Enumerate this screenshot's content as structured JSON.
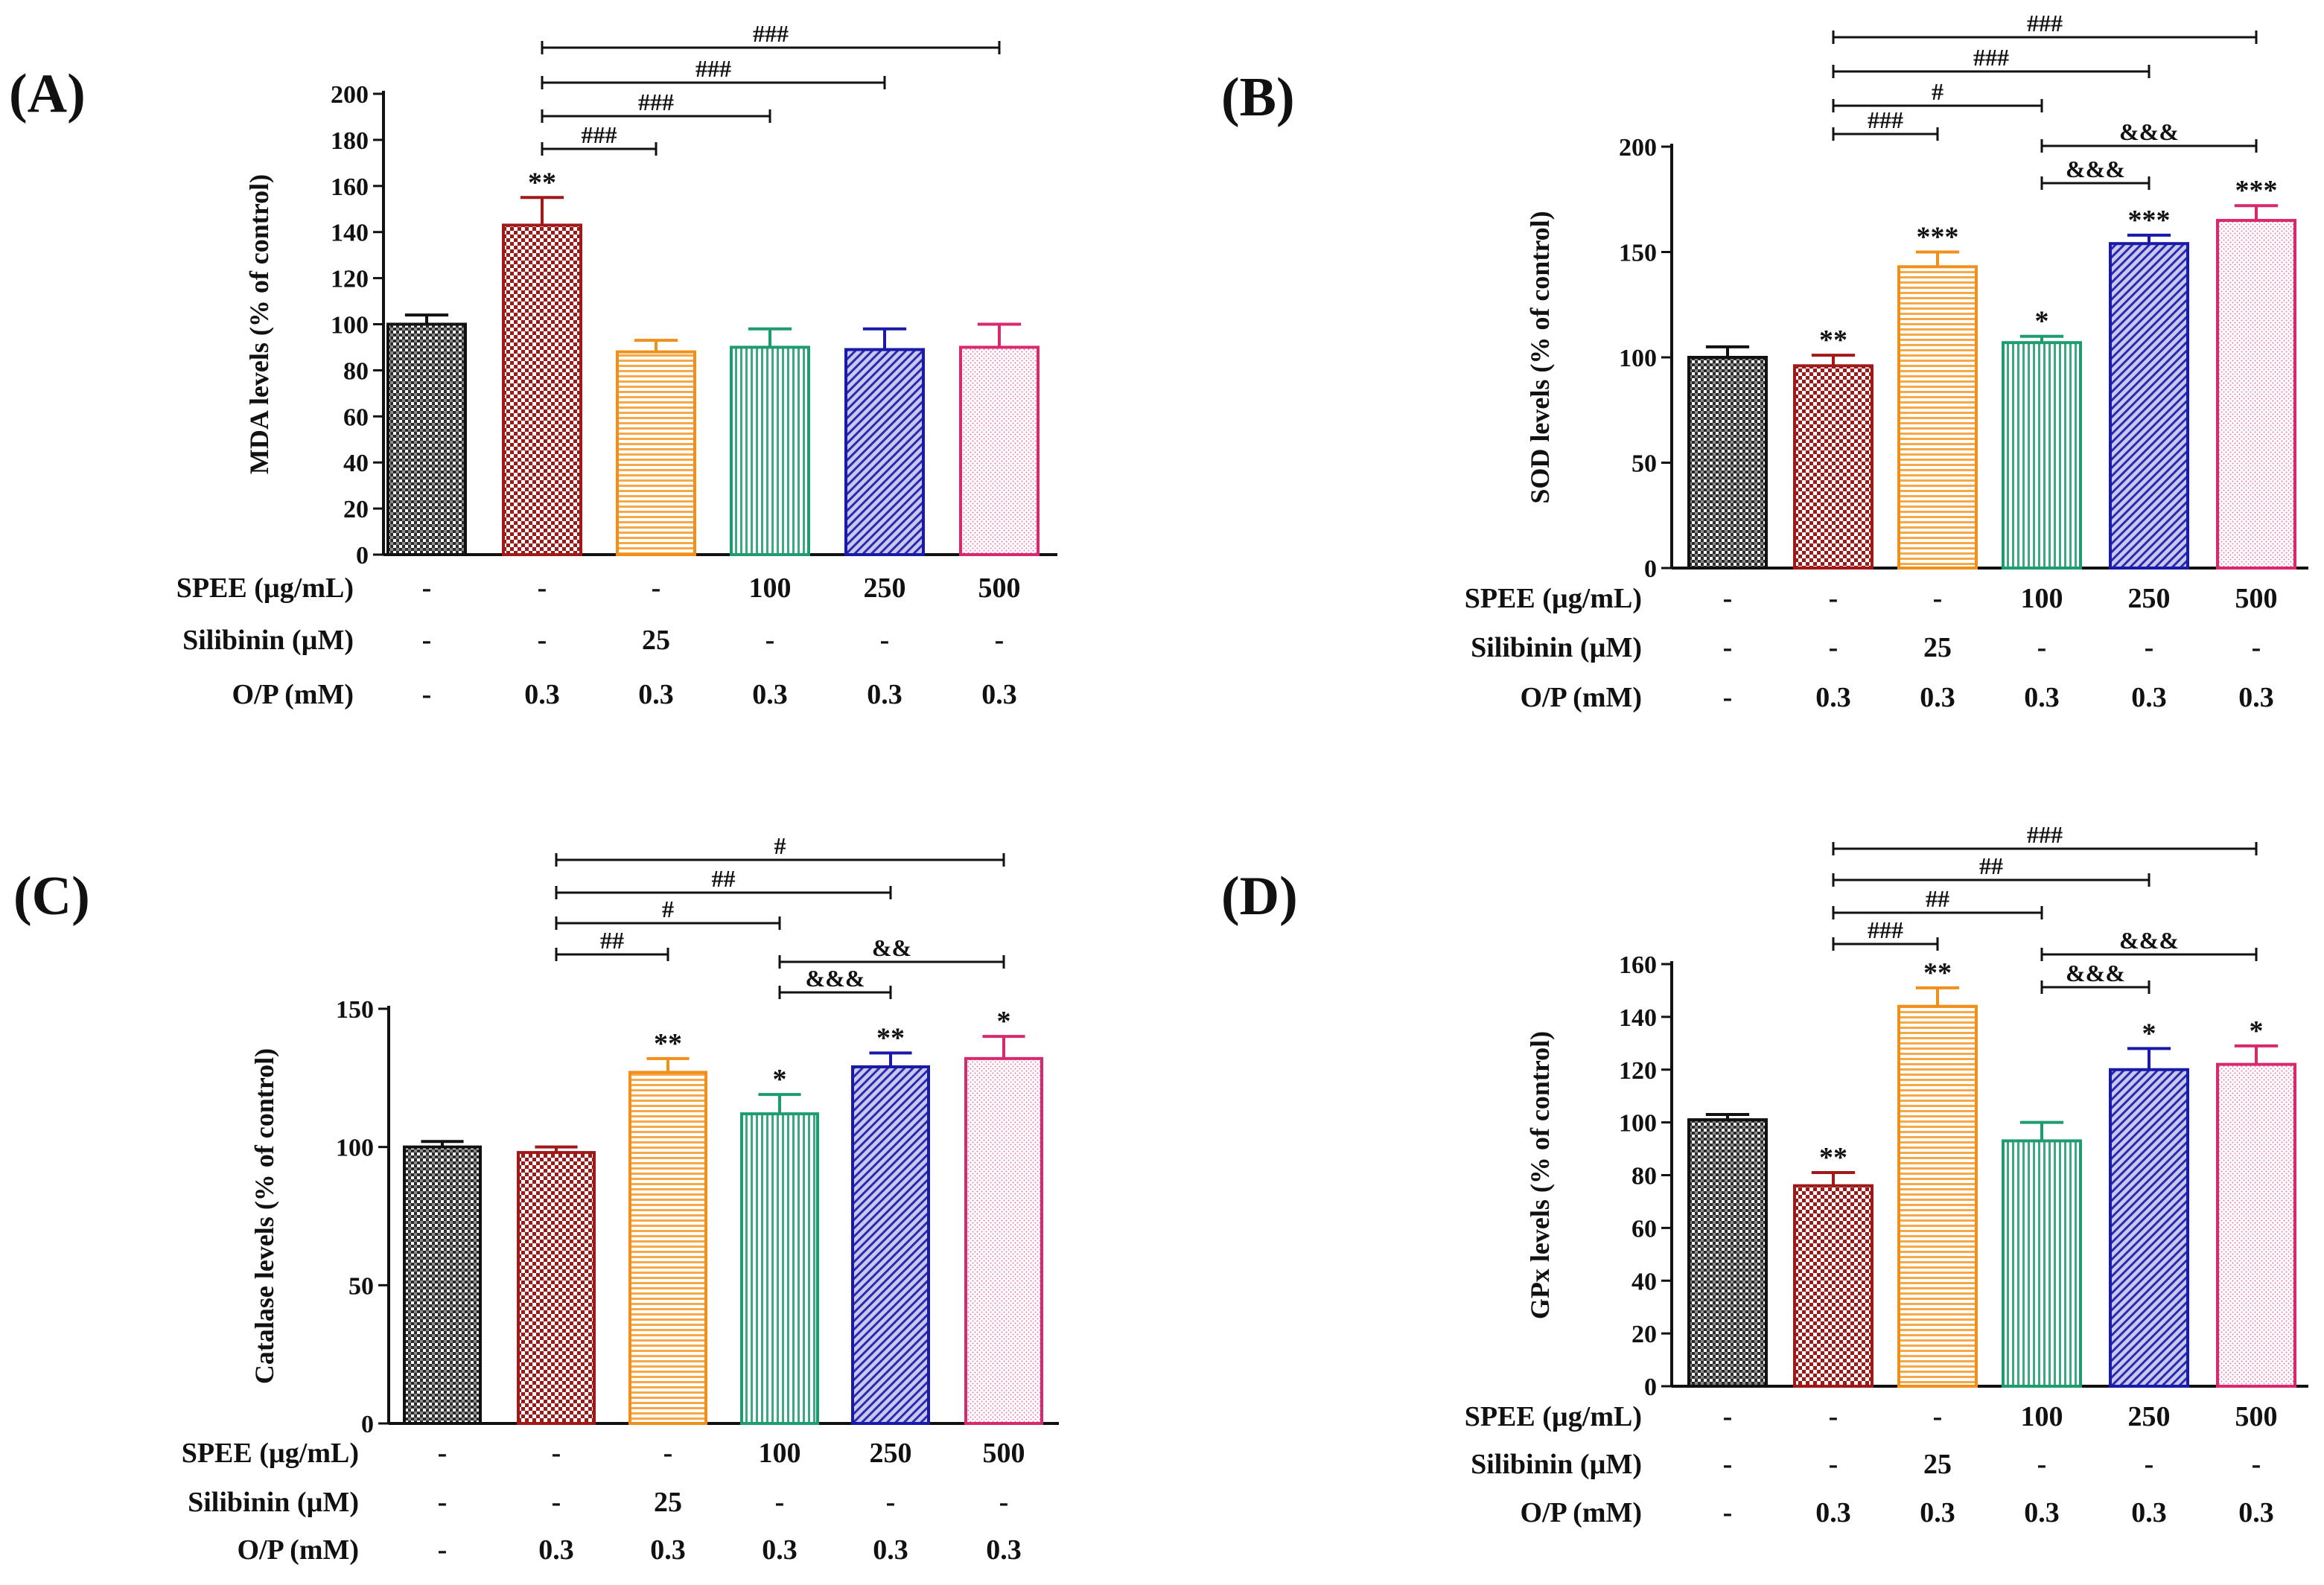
{
  "colors": {
    "axis": "#111111",
    "bar_stroke": [
      "#111111",
      "#a01818",
      "#f0901a",
      "#1e9c70",
      "#1a1aa8",
      "#d8286e"
    ],
    "bar_fill": [
      "#5a5a5a",
      "#b03030",
      "#f8c880",
      "#7ac8a8",
      "#8080c8",
      "#eab0c8"
    ]
  },
  "chart_data": [
    {
      "panel_label": "(A)",
      "type": "bar",
      "ylabel": "MDA levels (% of control)",
      "ylim": [
        0,
        200
      ],
      "yticks": [
        "0",
        "20",
        "40",
        "60",
        "80",
        "100",
        "120",
        "140",
        "160",
        "180",
        "200"
      ],
      "values": [
        100,
        143,
        88,
        90,
        89,
        90
      ],
      "errors": [
        4,
        12,
        5,
        8,
        9,
        10
      ],
      "stars": [
        "",
        "**",
        "",
        "",
        "",
        ""
      ],
      "rows": [
        {
          "label": "SPEE (µg/mL)",
          "values": [
            "-",
            "-",
            "-",
            "100",
            "250",
            "500"
          ]
        },
        {
          "label": "Silibinin (µM)",
          "values": [
            "-",
            "-",
            "25",
            "-",
            "-",
            "-"
          ]
        },
        {
          "label": "O/P (mM)",
          "values": [
            "-",
            "0.3",
            "0.3",
            "0.3",
            "0.3",
            "0.3"
          ]
        }
      ],
      "brackets": [
        {
          "from": 1,
          "to": 2,
          "label": "###"
        },
        {
          "from": 1,
          "to": 3,
          "label": "###"
        },
        {
          "from": 1,
          "to": 4,
          "label": "###"
        },
        {
          "from": 1,
          "to": 5,
          "label": "###"
        }
      ]
    },
    {
      "panel_label": "(B)",
      "type": "bar",
      "ylabel": "SOD levels (% of control)",
      "ylim": [
        0,
        200
      ],
      "yticks": [
        "0",
        "50",
        "100",
        "150",
        "200"
      ],
      "values": [
        100,
        96,
        143,
        107,
        154,
        165
      ],
      "errors": [
        5,
        5,
        7,
        3,
        4,
        7
      ],
      "stars": [
        "",
        "**",
        "***",
        "*",
        "***",
        "***"
      ],
      "rows": [
        {
          "label": "SPEE (µg/mL)",
          "values": [
            "-",
            "-",
            "-",
            "100",
            "250",
            "500"
          ]
        },
        {
          "label": "Silibinin (µM)",
          "values": [
            "-",
            "-",
            "25",
            "-",
            "-",
            "-"
          ]
        },
        {
          "label": "O/P (mM)",
          "values": [
            "-",
            "0.3",
            "0.3",
            "0.3",
            "0.3",
            "0.3"
          ]
        }
      ],
      "brackets": [
        {
          "from": 1,
          "to": 2,
          "label": "###"
        },
        {
          "from": 1,
          "to": 3,
          "label": "#"
        },
        {
          "from": 1,
          "to": 4,
          "label": "###"
        },
        {
          "from": 1,
          "to": 5,
          "label": "###"
        },
        {
          "from": 3,
          "to": 4,
          "label": "&&&"
        },
        {
          "from": 3,
          "to": 5,
          "label": "&&&"
        }
      ]
    },
    {
      "panel_label": "(C)",
      "type": "bar",
      "ylabel": "Catalase levels (% of control)",
      "ylim": [
        0,
        150
      ],
      "yticks": [
        "0",
        "50",
        "100",
        "150"
      ],
      "values": [
        100,
        98,
        127,
        112,
        129,
        132
      ],
      "errors": [
        2,
        2,
        5,
        7,
        5,
        8
      ],
      "stars": [
        "",
        "",
        "**",
        "*",
        "**",
        "*"
      ],
      "rows": [
        {
          "label": "SPEE (µg/mL)",
          "values": [
            "-",
            "-",
            "-",
            "100",
            "250",
            "500"
          ]
        },
        {
          "label": "Silibinin (µM)",
          "values": [
            "-",
            "-",
            "25",
            "-",
            "-",
            "-"
          ]
        },
        {
          "label": "O/P (mM)",
          "values": [
            "-",
            "0.3",
            "0.3",
            "0.3",
            "0.3",
            "0.3"
          ]
        }
      ],
      "brackets": [
        {
          "from": 1,
          "to": 2,
          "label": "##"
        },
        {
          "from": 1,
          "to": 3,
          "label": "#"
        },
        {
          "from": 1,
          "to": 4,
          "label": "##"
        },
        {
          "from": 1,
          "to": 5,
          "label": "#"
        },
        {
          "from": 3,
          "to": 4,
          "label": "&&&"
        },
        {
          "from": 3,
          "to": 5,
          "label": "&&"
        }
      ]
    },
    {
      "panel_label": "(D)",
      "type": "bar",
      "ylabel": "GPx levels (% of control)",
      "ylim": [
        0,
        160
      ],
      "yticks": [
        "0",
        "20",
        "40",
        "60",
        "80",
        "100",
        "120",
        "140",
        "160"
      ],
      "values": [
        101,
        76,
        144,
        93,
        120,
        122
      ],
      "errors": [
        2,
        5,
        7,
        7,
        8,
        7
      ],
      "stars": [
        "",
        "**",
        "**",
        "",
        "*",
        "*"
      ],
      "rows": [
        {
          "label": "SPEE (µg/mL)",
          "values": [
            "-",
            "-",
            "-",
            "100",
            "250",
            "500"
          ]
        },
        {
          "label": "Silibinin (µM)",
          "values": [
            "-",
            "-",
            "25",
            "-",
            "-",
            "-"
          ]
        },
        {
          "label": "O/P (mM)",
          "values": [
            "-",
            "0.3",
            "0.3",
            "0.3",
            "0.3",
            "0.3"
          ]
        }
      ],
      "brackets": [
        {
          "from": 1,
          "to": 2,
          "label": "###"
        },
        {
          "from": 1,
          "to": 3,
          "label": "##"
        },
        {
          "from": 1,
          "to": 4,
          "label": "##"
        },
        {
          "from": 1,
          "to": 5,
          "label": "###"
        },
        {
          "from": 3,
          "to": 4,
          "label": "&&&"
        },
        {
          "from": 3,
          "to": 5,
          "label": "&&&"
        }
      ]
    }
  ]
}
